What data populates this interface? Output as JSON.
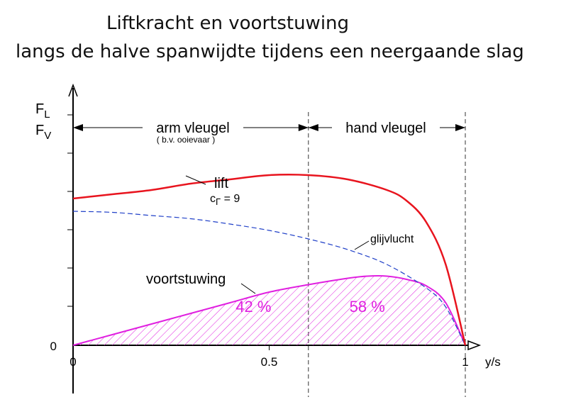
{
  "title": "Liftkracht en voortstuwing",
  "subtitle": "langs de halve spanwijdte tijdens een neergaande slag",
  "chart_data": {
    "type": "area",
    "ylabel_top": "F",
    "ylabel_top_sub": "L",
    "ylabel_bottom": "F",
    "ylabel_bottom_sub": "V",
    "xlabel": "y/s",
    "x_ticks": [
      "0",
      "0.5",
      "1"
    ],
    "y_zero_label": "0",
    "xlim": [
      0,
      1
    ],
    "ylim": [
      0,
      1.0
    ],
    "regions": [
      {
        "label": "arm vleugel",
        "note": "( b.v. ooievaar )",
        "x_start": 0,
        "x_end": 0.6
      },
      {
        "label": "hand vleugel",
        "x_start": 0.6,
        "x_end": 1.0
      }
    ],
    "series": [
      {
        "name": "lift",
        "annotation": "c",
        "annotation_sub": "Γ",
        "annotation_rest": " = 9",
        "color": "#e8141e",
        "style": "solid",
        "x": [
          0,
          0.05,
          0.1,
          0.2,
          0.3,
          0.4,
          0.5,
          0.6,
          0.7,
          0.8,
          0.85,
          0.9,
          0.95,
          1.0
        ],
        "y": [
          0.69,
          0.7,
          0.71,
          0.73,
          0.76,
          0.78,
          0.8,
          0.8,
          0.78,
          0.73,
          0.68,
          0.58,
          0.38,
          0.0
        ]
      },
      {
        "name": "glijvlucht",
        "color": "#2040c8",
        "style": "dashed",
        "x": [
          0,
          0.1,
          0.2,
          0.3,
          0.4,
          0.5,
          0.6,
          0.7,
          0.8,
          0.9,
          0.95,
          1.0
        ],
        "y": [
          0.63,
          0.625,
          0.61,
          0.595,
          0.57,
          0.54,
          0.5,
          0.45,
          0.38,
          0.27,
          0.18,
          0.0
        ]
      },
      {
        "name": "voortstuwing",
        "color": "#e020e0",
        "style": "solid",
        "hatched": true,
        "x": [
          0,
          0.1,
          0.2,
          0.3,
          0.4,
          0.5,
          0.6,
          0.7,
          0.75,
          0.8,
          0.85,
          0.9,
          0.95,
          1.0
        ],
        "y": [
          0.0,
          0.05,
          0.1,
          0.15,
          0.2,
          0.25,
          0.285,
          0.315,
          0.325,
          0.325,
          0.31,
          0.28,
          0.2,
          0.0
        ]
      }
    ],
    "area_labels": [
      {
        "text": "42 %",
        "x": 0.46,
        "y": 0.13
      },
      {
        "text": "58 %",
        "x": 0.75,
        "y": 0.13
      }
    ]
  }
}
